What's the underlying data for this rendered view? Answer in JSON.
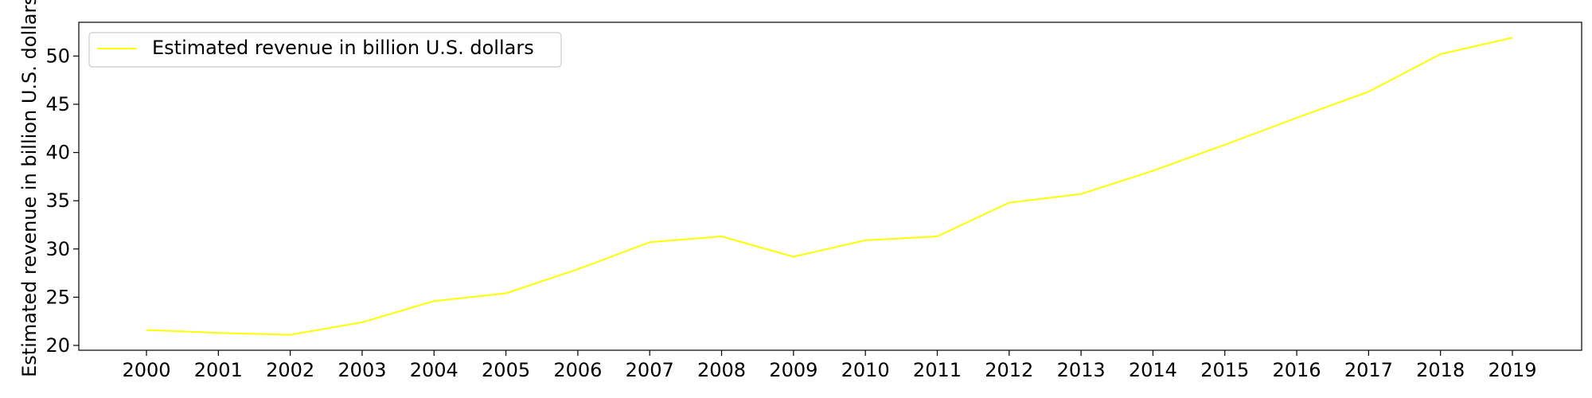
{
  "chart_data": {
    "type": "line",
    "title": "",
    "xlabel": "",
    "ylabel": "Estimated revenue in billion U.S. dollars",
    "categories": [
      "2000",
      "2001",
      "2002",
      "2003",
      "2004",
      "2005",
      "2006",
      "2007",
      "2008",
      "2009",
      "2010",
      "2011",
      "2012",
      "2013",
      "2014",
      "2015",
      "2016",
      "2017",
      "2018",
      "2019"
    ],
    "series": [
      {
        "name": "Estimated revenue in billion U.S. dollars",
        "color": "#ffff00",
        "values": [
          21.6,
          21.3,
          21.1,
          22.4,
          24.6,
          25.4,
          27.9,
          30.7,
          31.3,
          29.2,
          30.9,
          31.3,
          34.8,
          35.7,
          38.1,
          40.8,
          43.6,
          46.3,
          50.2,
          51.9
        ]
      }
    ],
    "yticks": [
      20,
      25,
      30,
      35,
      40,
      45,
      50
    ],
    "ylim": [
      19.5,
      53.5
    ],
    "grid": false,
    "legend_position": "upper left"
  }
}
